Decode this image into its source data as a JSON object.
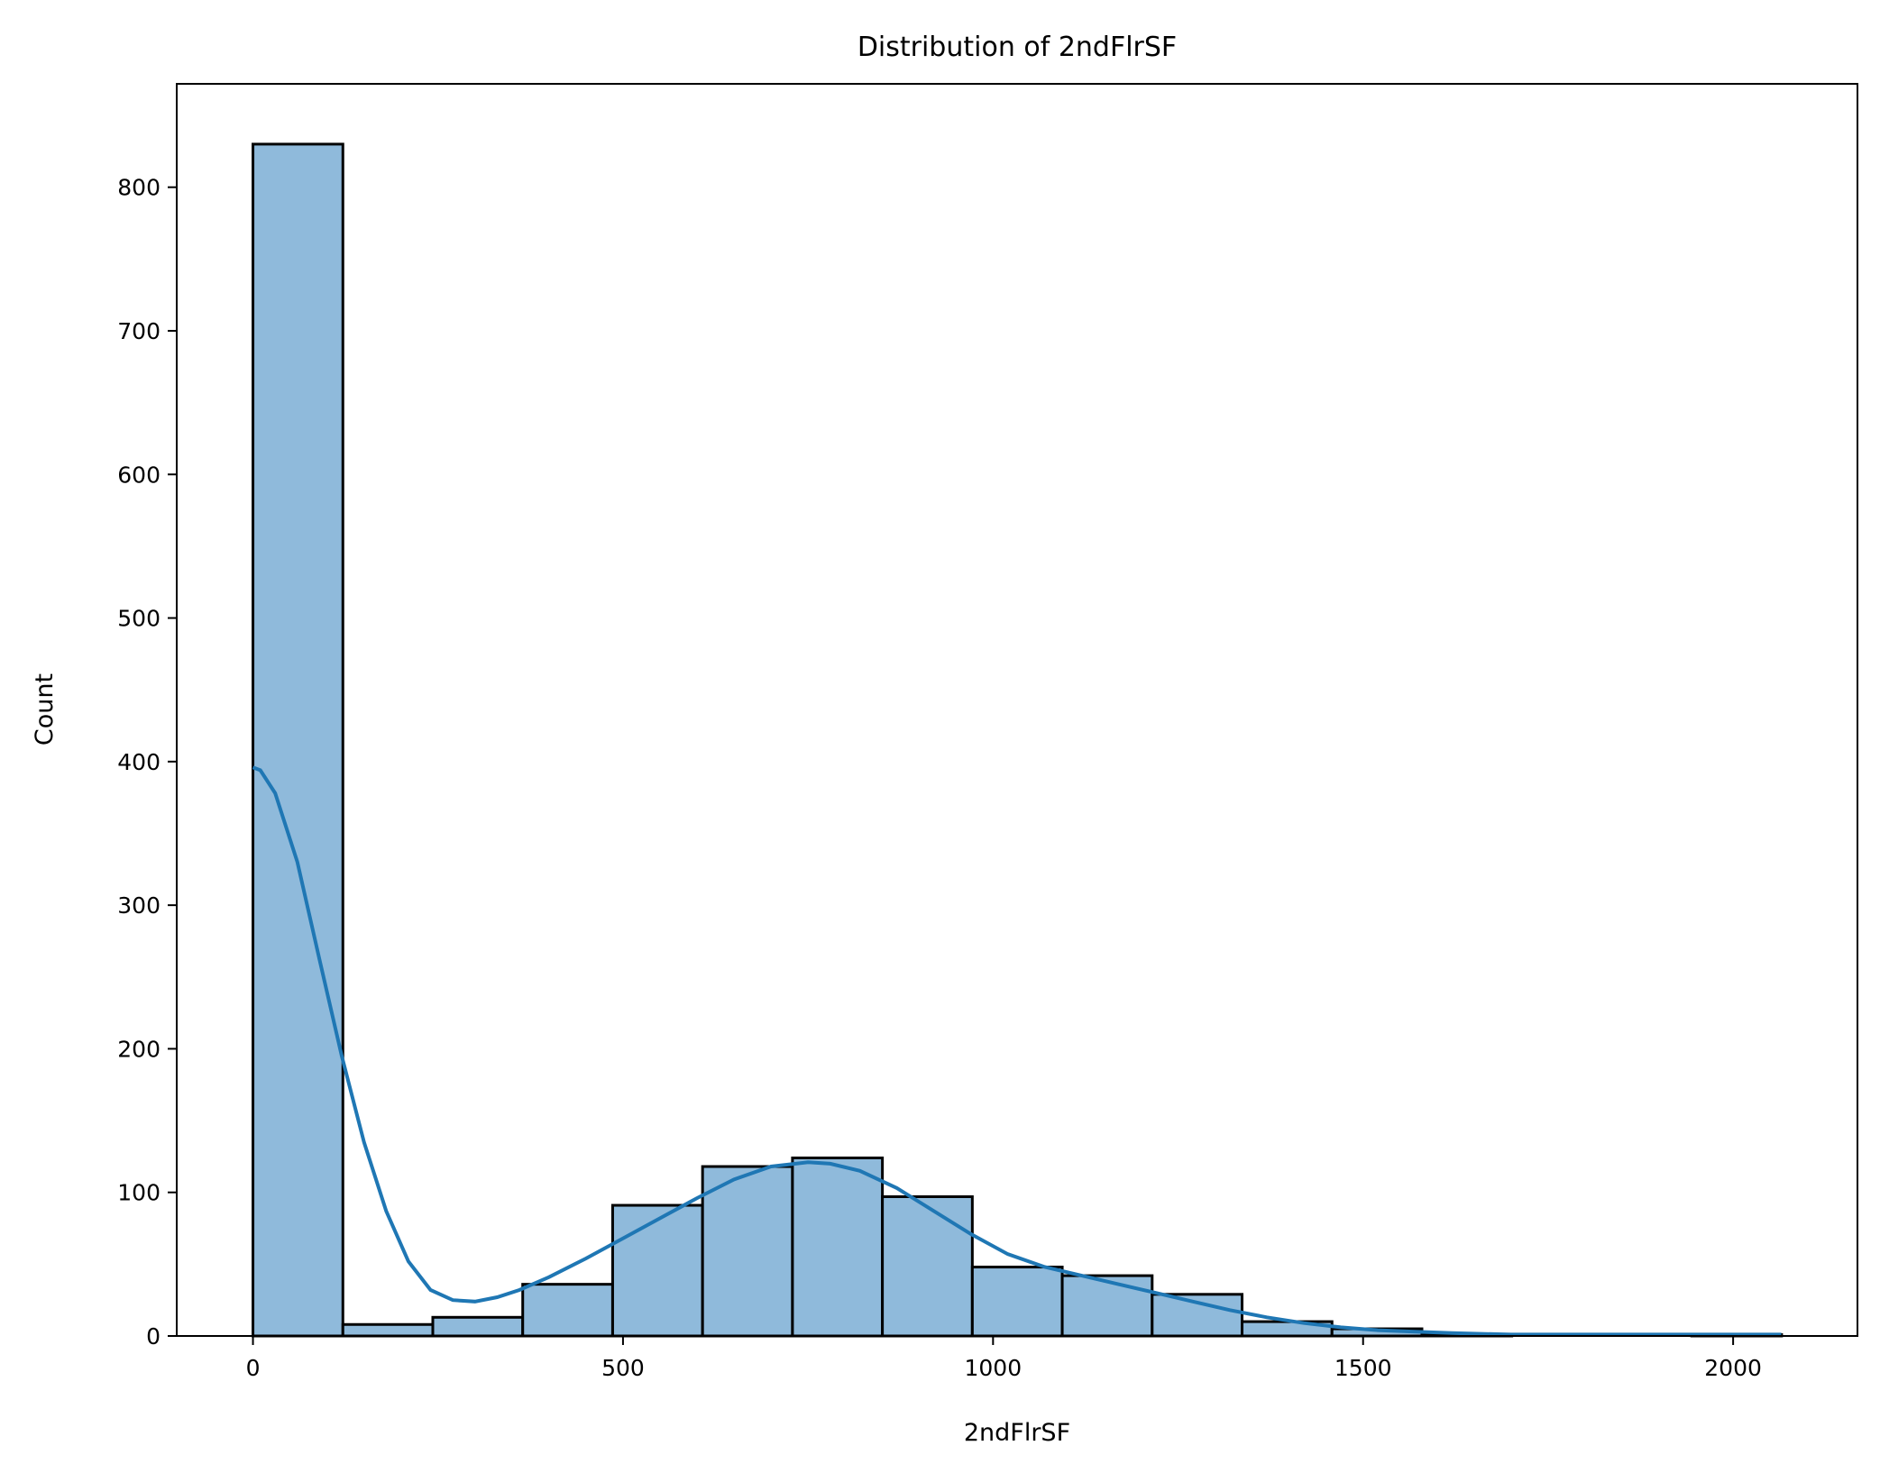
{
  "chart_data": {
    "type": "bar",
    "title": "Distribution of 2ndFlrSF",
    "xlabel": "2ndFlrSF",
    "ylabel": "Count",
    "xlim": [
      -103,
      2168
    ],
    "ylim": [
      0,
      872
    ],
    "x_ticks": [
      "0",
      "500",
      "1000",
      "1500",
      "2000"
    ],
    "y_ticks": [
      "0",
      "100",
      "200",
      "300",
      "400",
      "500",
      "600",
      "700",
      "800"
    ],
    "grid": false,
    "bins": [
      {
        "start": 0,
        "end": 121.5,
        "count": 830
      },
      {
        "start": 121.5,
        "end": 243,
        "count": 8
      },
      {
        "start": 243,
        "end": 364.5,
        "count": 13
      },
      {
        "start": 364.5,
        "end": 486,
        "count": 36
      },
      {
        "start": 486,
        "end": 607.5,
        "count": 91
      },
      {
        "start": 607.5,
        "end": 729,
        "count": 118
      },
      {
        "start": 729,
        "end": 850.5,
        "count": 124
      },
      {
        "start": 850.5,
        "end": 972,
        "count": 97
      },
      {
        "start": 972,
        "end": 1093.5,
        "count": 48
      },
      {
        "start": 1093.5,
        "end": 1215,
        "count": 42
      },
      {
        "start": 1215,
        "end": 1336.5,
        "count": 29
      },
      {
        "start": 1336.5,
        "end": 1458,
        "count": 10
      },
      {
        "start": 1458,
        "end": 1579.5,
        "count": 5
      },
      {
        "start": 1579.5,
        "end": 1701,
        "count": 1
      },
      {
        "start": 1701,
        "end": 1822.5,
        "count": 0
      },
      {
        "start": 1822.5,
        "end": 1944,
        "count": 0
      },
      {
        "start": 1944,
        "end": 2065.5,
        "count": 1
      }
    ],
    "kde": {
      "x": [
        0,
        10,
        30,
        60,
        90,
        120,
        150,
        180,
        210,
        240,
        270,
        300,
        330,
        360,
        400,
        450,
        500,
        550,
        600,
        650,
        700,
        750,
        780,
        820,
        870,
        920,
        970,
        1020,
        1070,
        1120,
        1170,
        1220,
        1270,
        1320,
        1370,
        1420,
        1470,
        1520,
        1570,
        1620,
        1700,
        1800,
        1900,
        2000,
        2065
      ],
      "y": [
        396,
        394,
        378,
        330,
        262,
        195,
        135,
        87,
        52,
        32,
        25,
        24,
        27,
        32,
        41,
        54,
        68,
        82,
        96,
        109,
        118,
        121,
        120,
        115,
        103,
        87,
        71,
        57,
        48,
        42,
        36,
        30,
        24,
        18,
        13,
        9,
        6,
        4,
        3,
        2,
        1,
        1,
        1,
        1,
        1
      ]
    },
    "colors": {
      "bar_fill": "#8fbadb",
      "bar_edge": "#000000",
      "kde_line": "#1f77b4"
    }
  }
}
